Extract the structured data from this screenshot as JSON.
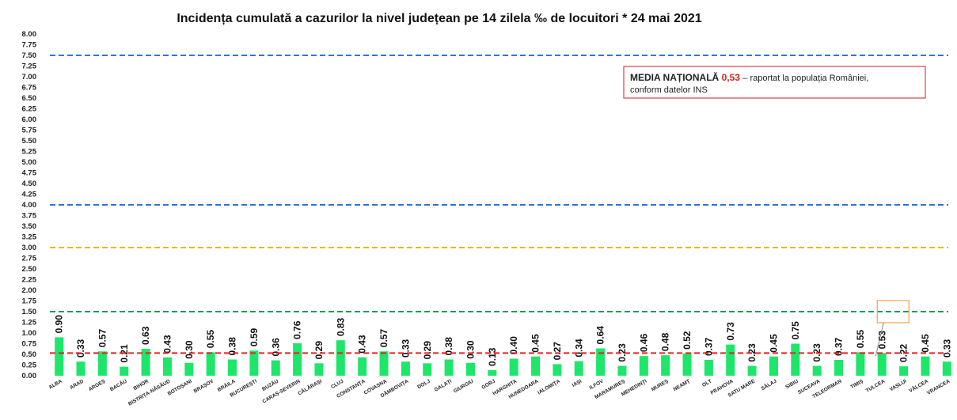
{
  "chart_data": {
    "type": "bar",
    "title": "Incidența cumulată a cazurilor la nivel județean pe 14 zilela ‰ de locuitori *  24 mai 2021",
    "categories": [
      "ALBA",
      "ARAD",
      "ARGEȘ",
      "BACĂU",
      "BIHOR",
      "BISTRIȚA-NĂSĂUD",
      "BOTOȘANI",
      "BRAȘOV",
      "BRĂILA",
      "BUCUREȘTI",
      "BUZĂU",
      "CARAȘ-SEVERIN",
      "CĂLĂRAȘI",
      "CLUJ",
      "CONSTANȚA",
      "COVASNA",
      "DÂMBOVIȚA",
      "DOLJ",
      "GALAȚI",
      "GIURGIU",
      "GORJ",
      "HARGHITA",
      "HUNEDOARA",
      "IALOMIȚA",
      "IAȘI",
      "ILFOV",
      "MARAMUREȘ",
      "MEHEDINȚI",
      "MUREȘ",
      "NEAMȚ",
      "OLT",
      "PRAHOVA",
      "SATU MARE",
      "SĂLAJ",
      "SIBIU",
      "SUCEAVA",
      "TELEORMAN",
      "TIMIȘ",
      "TULCEA",
      "VASLUI",
      "VÂLCEA",
      "VRANCEA"
    ],
    "values": [
      0.9,
      0.33,
      0.57,
      0.21,
      0.63,
      0.43,
      0.3,
      0.55,
      0.38,
      0.59,
      0.36,
      0.76,
      0.29,
      0.83,
      0.43,
      0.57,
      0.33,
      0.29,
      0.38,
      0.3,
      0.13,
      0.4,
      0.45,
      0.27,
      0.34,
      0.64,
      0.23,
      0.46,
      0.48,
      0.52,
      0.37,
      0.73,
      0.23,
      0.45,
      0.75,
      0.23,
      0.37,
      0.55,
      0.53,
      0.22,
      0.45,
      0.33
    ],
    "value_labels": [
      "0.90",
      "0.33",
      "0.57",
      "0.21",
      "0.63",
      "0.43",
      "0.30",
      "0.55",
      "0.38",
      "0.59",
      "0.36",
      "0.76",
      "0.29",
      "0.83",
      "0.43",
      "0.57",
      "0.33",
      "0.29",
      "0.38",
      "0.30",
      "0.13",
      "0.40",
      "0.45",
      "0.27",
      "0.34",
      "0.64",
      "0.23",
      "0.46",
      "0.48",
      "0.52",
      "0.37",
      "0.73",
      "0.23",
      "0.45",
      "0.75",
      "0.23",
      "0.37",
      "0.55",
      "0.53",
      "0.22",
      "0.45",
      "0.33"
    ],
    "color": "#1de66a",
    "ylim": [
      0,
      8
    ],
    "yticks": [
      {
        "value": 0,
        "label": "0.00"
      },
      {
        "value": 0.25,
        "label": "0.25"
      },
      {
        "value": 0.5,
        "label": "0.50"
      },
      {
        "value": 0.75,
        "label": "0.75"
      },
      {
        "value": 1,
        "label": "1.00"
      },
      {
        "value": 1.25,
        "label": "1.25"
      },
      {
        "value": 1.5,
        "label": "1.50"
      },
      {
        "value": 1.75,
        "label": "1.75"
      },
      {
        "value": 2,
        "label": "2.00"
      },
      {
        "value": 2.25,
        "label": "2.25"
      },
      {
        "value": 2.5,
        "label": "2.50"
      },
      {
        "value": 2.75,
        "label": "2.75"
      },
      {
        "value": 3,
        "label": "3.00"
      },
      {
        "value": 3.25,
        "label": "3.25"
      },
      {
        "value": 3.5,
        "label": "3.50"
      },
      {
        "value": 3.75,
        "label": "3.75"
      },
      {
        "value": 4,
        "label": "4.00"
      },
      {
        "value": 4.25,
        "label": "4.25"
      },
      {
        "value": 4.5,
        "label": "4.50"
      },
      {
        "value": 4.75,
        "label": "4.75"
      },
      {
        "value": 5,
        "label": "5.00"
      },
      {
        "value": 5.25,
        "label": "5.25"
      },
      {
        "value": 5.5,
        "label": "5.50"
      },
      {
        "value": 5.75,
        "label": "5.75"
      },
      {
        "value": 6,
        "label": "6.00"
      },
      {
        "value": 6.25,
        "label": "6.25"
      },
      {
        "value": 6.5,
        "label": "6.50"
      },
      {
        "value": 6.75,
        "label": "6.75"
      },
      {
        "value": 7,
        "label": "7.00"
      },
      {
        "value": 7.25,
        "label": "7.25"
      },
      {
        "value": 7.5,
        "label": "7.50"
      },
      {
        "value": 7.75,
        "label": "7.75"
      },
      {
        "value": 8,
        "label": "8.00"
      }
    ],
    "grid": false,
    "reference_lines": [
      {
        "value": 7.5,
        "color": "#2e75d6"
      },
      {
        "value": 4.0,
        "color": "#2e75d6"
      },
      {
        "value": 3.0,
        "color": "#e6b820"
      },
      {
        "value": 1.5,
        "color": "#1a9a5a"
      },
      {
        "value": 0.53,
        "color": "#e82020"
      }
    ],
    "annotation": {
      "label": "MEDIA NAȚIONALĂ",
      "value_text": "0,53",
      "text": "– raportat la populația României,",
      "text2": "conform datelor INS"
    }
  }
}
